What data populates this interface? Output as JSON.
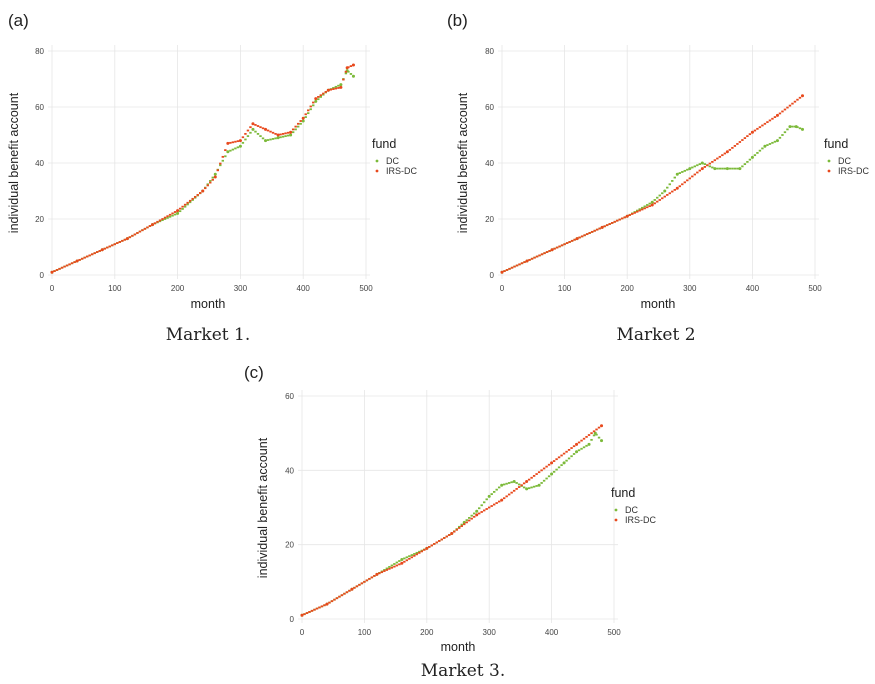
{
  "chart_data": [
    {
      "type": "scatter",
      "panel": "(a)",
      "caption": "Market 1.",
      "xlabel": "month",
      "ylabel": "individual benefit account",
      "xlim": [
        0,
        500
      ],
      "ylim": [
        0,
        80
      ],
      "xticks": [
        0,
        100,
        200,
        300,
        400,
        500
      ],
      "yticks": [
        0,
        20,
        40,
        60,
        80
      ],
      "legend_title": "fund",
      "legend_position": "right",
      "grid": true,
      "series": [
        {
          "name": "DC",
          "color": "#7cba3a",
          "x": [
            0,
            40,
            80,
            120,
            160,
            200,
            240,
            260,
            280,
            300,
            320,
            340,
            360,
            380,
            400,
            420,
            440,
            460,
            470,
            480
          ],
          "values": [
            1,
            5,
            9,
            13,
            18,
            22,
            30,
            36,
            44,
            46,
            52,
            48,
            49,
            50,
            55,
            62,
            66,
            68,
            73,
            71
          ]
        },
        {
          "name": "IRS-DC",
          "color": "#e8491d",
          "x": [
            0,
            40,
            80,
            120,
            160,
            200,
            240,
            260,
            280,
            300,
            320,
            340,
            360,
            380,
            400,
            420,
            440,
            460,
            470,
            480
          ],
          "values": [
            1,
            5,
            9,
            13,
            18,
            23,
            30,
            35,
            47,
            48,
            54,
            52,
            50,
            51,
            56,
            63,
            66,
            67,
            74,
            75
          ]
        }
      ]
    },
    {
      "type": "scatter",
      "panel": "(b)",
      "caption": "Market 2",
      "xlabel": "month",
      "ylabel": "individual benefit account",
      "xlim": [
        0,
        500
      ],
      "ylim": [
        0,
        80
      ],
      "xticks": [
        0,
        100,
        200,
        300,
        400,
        500
      ],
      "yticks": [
        0,
        20,
        40,
        60,
        80
      ],
      "legend_title": "fund",
      "legend_position": "right",
      "grid": true,
      "series": [
        {
          "name": "DC",
          "color": "#7cba3a",
          "x": [
            0,
            40,
            80,
            120,
            160,
            200,
            240,
            260,
            280,
            300,
            320,
            340,
            360,
            380,
            400,
            420,
            440,
            460,
            470,
            480
          ],
          "values": [
            1,
            5,
            9,
            13,
            17,
            21,
            26,
            30,
            36,
            38,
            40,
            38,
            38,
            38,
            42,
            46,
            48,
            53,
            53,
            52
          ]
        },
        {
          "name": "IRS-DC",
          "color": "#e8491d",
          "x": [
            0,
            40,
            80,
            120,
            160,
            200,
            240,
            280,
            320,
            360,
            400,
            440,
            480
          ],
          "values": [
            1,
            5,
            9,
            13,
            17,
            21,
            25,
            31,
            38,
            44,
            51,
            57,
            64
          ]
        }
      ]
    },
    {
      "type": "scatter",
      "panel": "(c)",
      "caption": "Market 3.",
      "xlabel": "month",
      "ylabel": "individual benefit account",
      "xlim": [
        0,
        500
      ],
      "ylim": [
        0,
        60
      ],
      "xticks": [
        0,
        100,
        200,
        300,
        400,
        500
      ],
      "yticks": [
        0,
        20,
        40,
        60
      ],
      "legend_title": "fund",
      "legend_position": "right",
      "grid": true,
      "series": [
        {
          "name": "DC",
          "color": "#7cba3a",
          "x": [
            0,
            40,
            80,
            120,
            160,
            200,
            240,
            260,
            280,
            300,
            320,
            340,
            360,
            380,
            400,
            420,
            440,
            460,
            470,
            480
          ],
          "values": [
            1,
            4,
            8,
            12,
            16,
            19,
            23,
            26,
            29,
            33,
            36,
            37,
            35,
            36,
            39,
            42,
            45,
            47,
            50,
            48
          ]
        },
        {
          "name": "IRS-DC",
          "color": "#e8491d",
          "x": [
            0,
            40,
            80,
            120,
            160,
            200,
            240,
            280,
            320,
            360,
            400,
            440,
            480
          ],
          "values": [
            1,
            4,
            8,
            12,
            15,
            19,
            23,
            28,
            32,
            37,
            42,
            47,
            52
          ]
        }
      ]
    }
  ]
}
